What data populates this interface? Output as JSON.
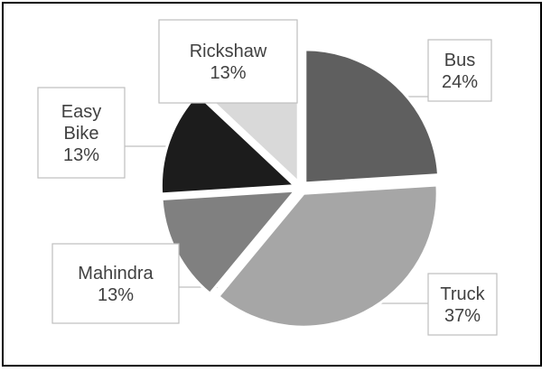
{
  "chart_data": {
    "type": "pie",
    "title": "",
    "slices": [
      {
        "label": "Bus",
        "value": 24,
        "value_label": "24%",
        "color": "#5f5f5f",
        "callout_lines": [
          "Bus",
          "24%"
        ]
      },
      {
        "label": "Truck",
        "value": 37,
        "value_label": "37%",
        "color": "#a6a6a6",
        "callout_lines": [
          "Truck",
          "37%"
        ]
      },
      {
        "label": "Mahindra",
        "value": 13,
        "value_label": "13%",
        "color": "#808080",
        "callout_lines": [
          "Mahindra",
          "13%"
        ]
      },
      {
        "label": "Easy Bike",
        "value": 13,
        "value_label": "13%",
        "color": "#1c1c1c",
        "callout_lines": [
          "Easy",
          "Bike",
          "13%"
        ]
      },
      {
        "label": "Rickshaw",
        "value": 13,
        "value_label": "13%",
        "color": "#d9d9d9",
        "callout_lines": [
          "Rickshaw",
          "13%"
        ]
      }
    ],
    "exploded": true,
    "legend": "none",
    "data_labels": "callouts"
  }
}
